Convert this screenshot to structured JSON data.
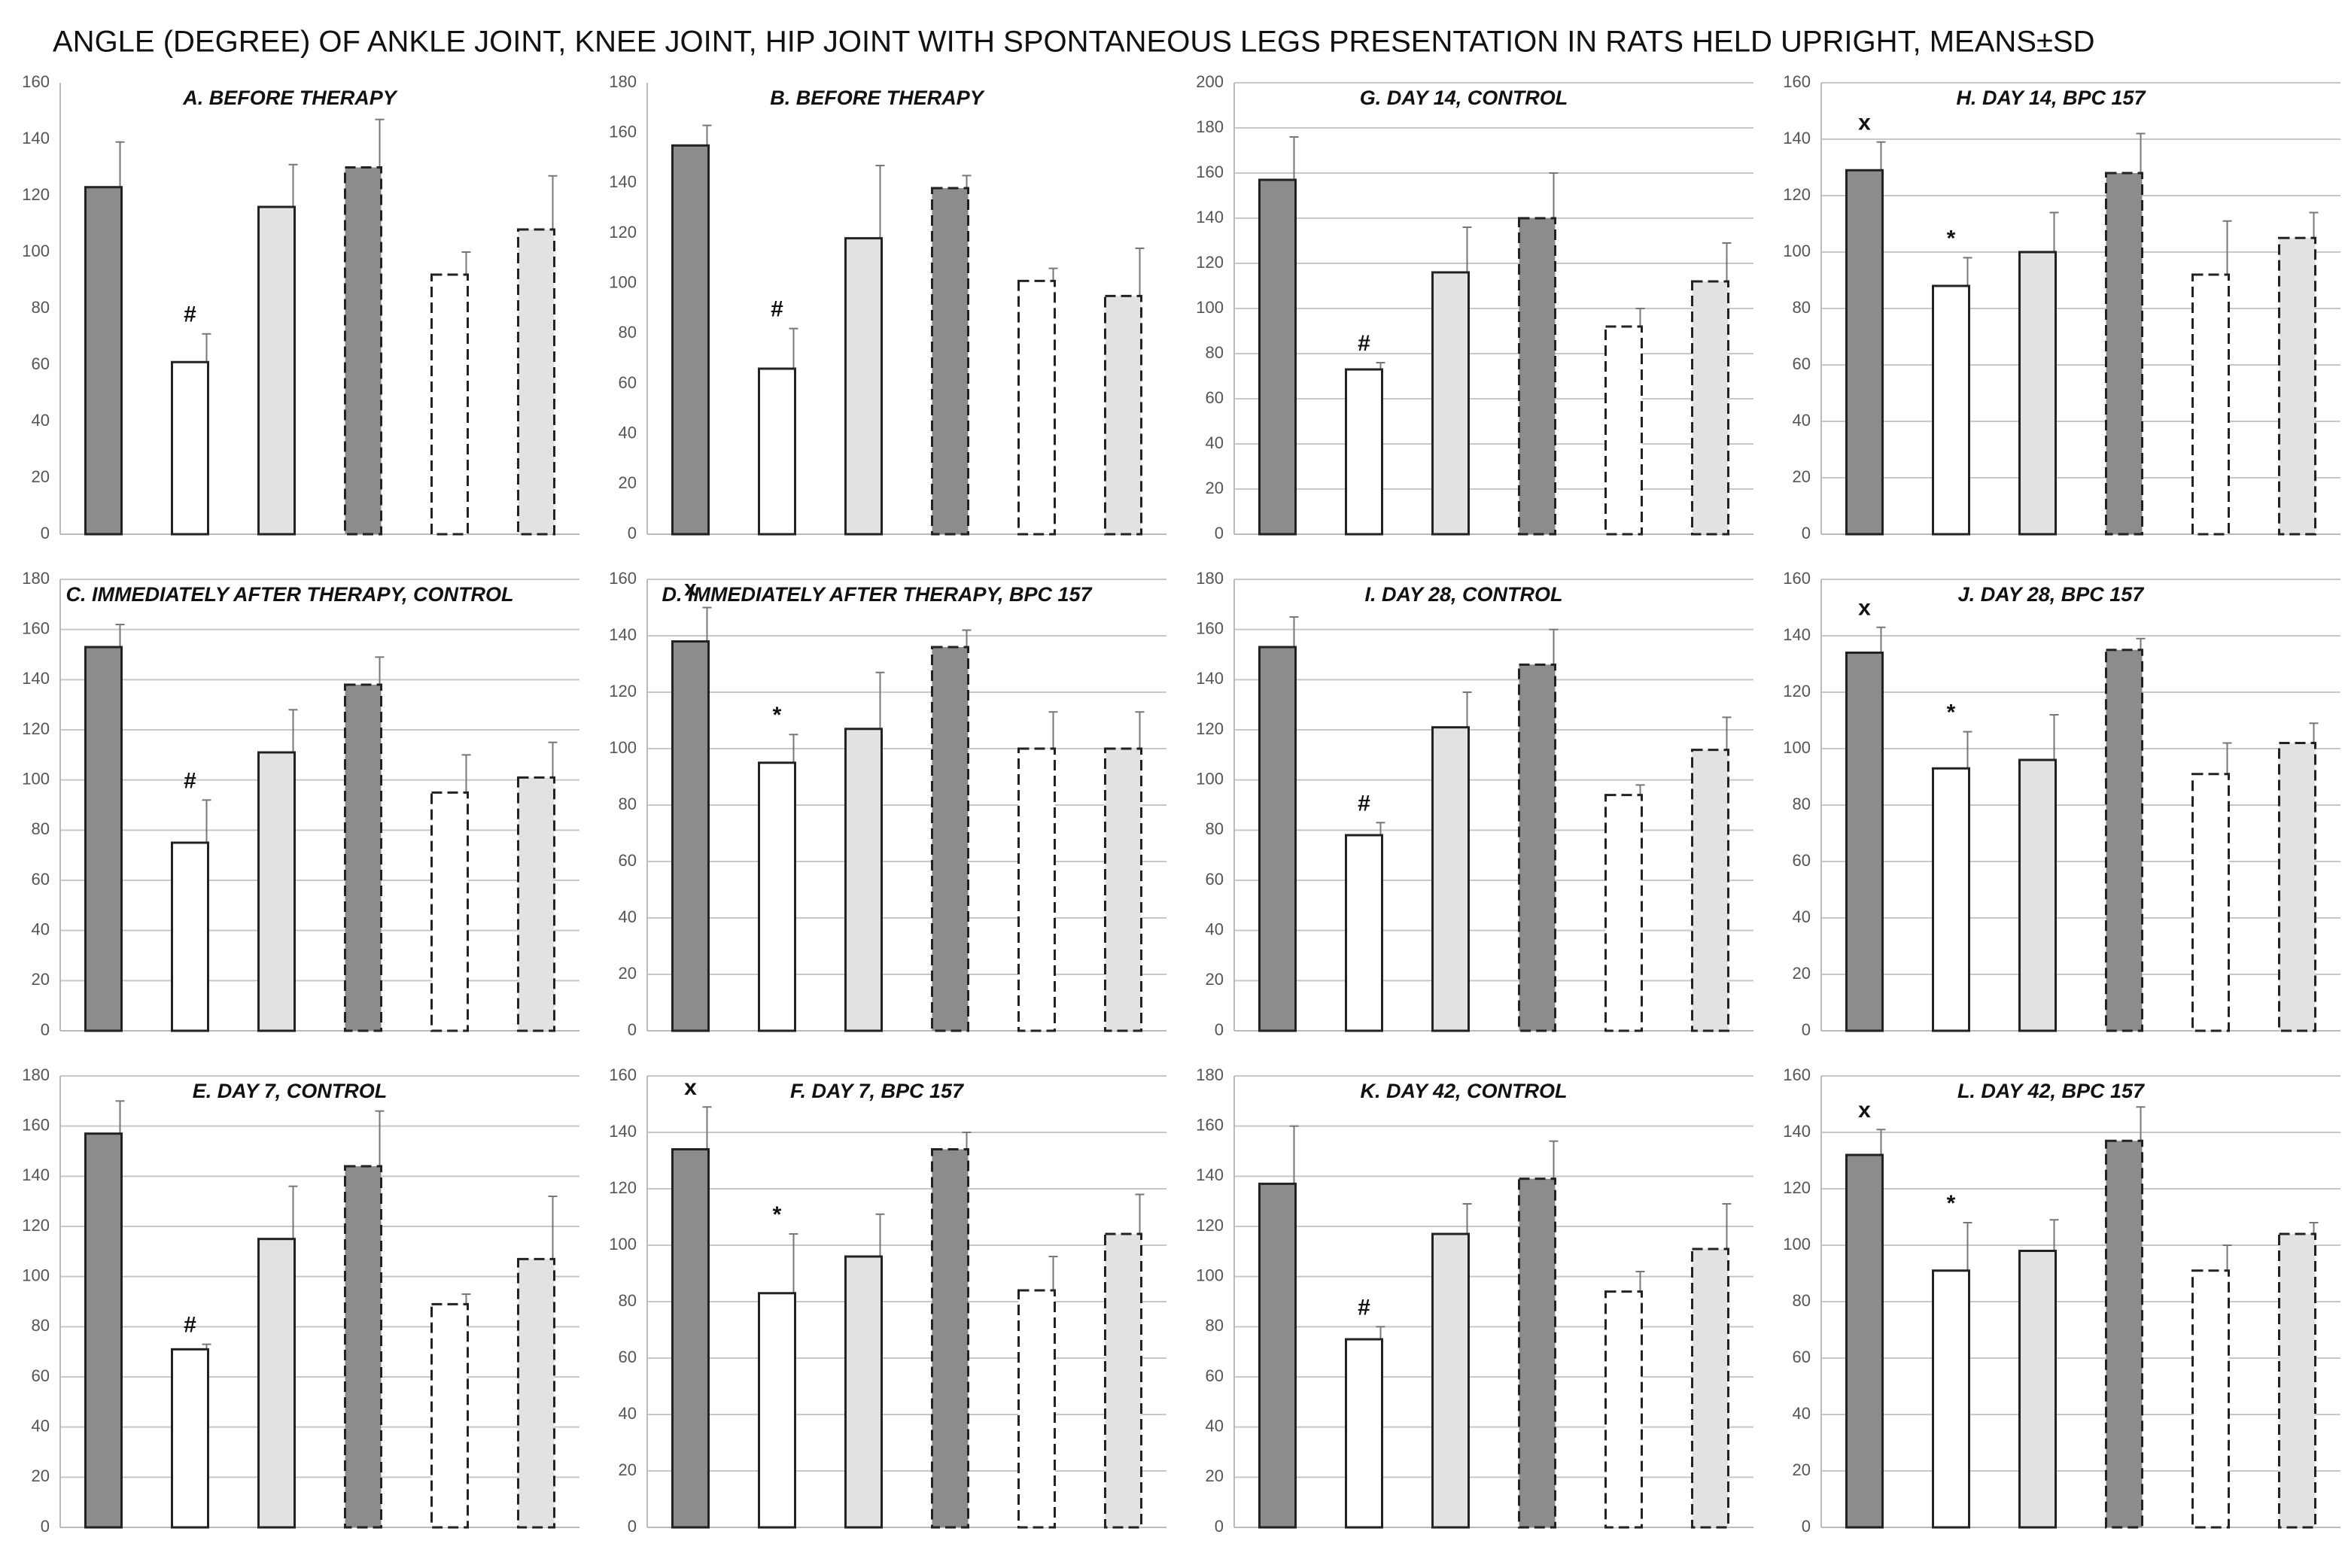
{
  "title": "ANGLE (DEGREE) OF ANKLE JOINT, KNEE JOINT, HIP JOINT WITH SPONTANEOUS LEGS PRESENTATION IN RATS HELD UPRIGHT, MEANS±SD",
  "chart_data": [
    {
      "type": "bar",
      "title": "A. BEFORE THERAPY",
      "values": [
        123,
        61,
        116,
        130,
        92,
        108
      ],
      "errors": [
        16,
        10,
        15,
        17,
        8,
        19
      ],
      "markers": [
        null,
        "#",
        null,
        null,
        null,
        null
      ],
      "ylim": [
        0,
        160
      ],
      "yticks": [
        0,
        20,
        40,
        60,
        80,
        100,
        120,
        140,
        160
      ],
      "grid": false,
      "colors": [
        "#8c8c8c",
        "#ffffff",
        "#e2e2e2",
        "#8c8c8c",
        "#ffffff",
        "#e2e2e2"
      ],
      "dashed": [
        false,
        false,
        false,
        true,
        true,
        true
      ]
    },
    {
      "type": "bar",
      "title": "B. BEFORE THERAPY",
      "values": [
        155,
        66,
        118,
        138,
        101,
        95
      ],
      "errors": [
        8,
        16,
        29,
        5,
        5,
        19
      ],
      "markers": [
        null,
        "#",
        null,
        null,
        null,
        null
      ],
      "ylim": [
        0,
        180
      ],
      "yticks": [
        0,
        20,
        40,
        60,
        80,
        100,
        120,
        140,
        160,
        180
      ],
      "grid": false,
      "colors": [
        "#8c8c8c",
        "#ffffff",
        "#e2e2e2",
        "#8c8c8c",
        "#ffffff",
        "#e2e2e2"
      ],
      "dashed": [
        false,
        false,
        false,
        true,
        true,
        true
      ]
    },
    {
      "type": "bar",
      "title": "G. DAY 14,  CONTROL",
      "values": [
        157,
        73,
        116,
        140,
        92,
        112
      ],
      "errors": [
        19,
        3,
        20,
        20,
        8,
        17
      ],
      "markers": [
        null,
        "#",
        null,
        null,
        null,
        null
      ],
      "ylim": [
        0,
        200
      ],
      "yticks": [
        0,
        20,
        40,
        60,
        80,
        100,
        120,
        140,
        160,
        180,
        200
      ],
      "grid": true,
      "colors": [
        "#8c8c8c",
        "#ffffff",
        "#e2e2e2",
        "#8c8c8c",
        "#ffffff",
        "#e2e2e2"
      ],
      "dashed": [
        false,
        false,
        false,
        true,
        true,
        true
      ]
    },
    {
      "type": "bar",
      "title": "H. DAY 14,  BPC 157",
      "values": [
        129,
        88,
        100,
        128,
        92,
        105
      ],
      "errors": [
        10,
        10,
        14,
        14,
        19,
        9
      ],
      "markers": [
        "x",
        "*",
        null,
        null,
        null,
        null
      ],
      "ylim": [
        0,
        160
      ],
      "yticks": [
        0,
        20,
        40,
        60,
        80,
        100,
        120,
        140,
        160
      ],
      "grid": true,
      "colors": [
        "#8c8c8c",
        "#ffffff",
        "#e2e2e2",
        "#8c8c8c",
        "#ffffff",
        "#e2e2e2"
      ],
      "dashed": [
        false,
        false,
        false,
        true,
        true,
        true
      ]
    },
    {
      "type": "bar",
      "title": "C. IMMEDIATELY AFTER THERAPY,  CONTROL",
      "values": [
        153,
        75,
        111,
        138,
        95,
        101
      ],
      "errors": [
        9,
        17,
        17,
        11,
        15,
        14
      ],
      "markers": [
        null,
        "#",
        null,
        null,
        null,
        null
      ],
      "ylim": [
        0,
        180
      ],
      "yticks": [
        0,
        20,
        40,
        60,
        80,
        100,
        120,
        140,
        160,
        180
      ],
      "grid": true,
      "colors": [
        "#8c8c8c",
        "#ffffff",
        "#e2e2e2",
        "#8c8c8c",
        "#ffffff",
        "#e2e2e2"
      ],
      "dashed": [
        false,
        false,
        false,
        true,
        true,
        true
      ]
    },
    {
      "type": "bar",
      "title": "D. IMMEDIATELY AFTER THERAPY, BPC 157",
      "values": [
        138,
        95,
        107,
        136,
        100,
        100
      ],
      "errors": [
        12,
        10,
        20,
        6,
        13,
        13
      ],
      "markers": [
        "x",
        "*",
        null,
        null,
        null,
        null
      ],
      "ylim": [
        0,
        160
      ],
      "yticks": [
        0,
        20,
        40,
        60,
        80,
        100,
        120,
        140,
        160
      ],
      "grid": true,
      "colors": [
        "#8c8c8c",
        "#ffffff",
        "#e2e2e2",
        "#8c8c8c",
        "#ffffff",
        "#e2e2e2"
      ],
      "dashed": [
        false,
        false,
        false,
        true,
        true,
        true
      ]
    },
    {
      "type": "bar",
      "title": "I. DAY 28,  CONTROL",
      "values": [
        153,
        78,
        121,
        146,
        94,
        112
      ],
      "errors": [
        12,
        5,
        14,
        14,
        4,
        13
      ],
      "markers": [
        null,
        "#",
        null,
        null,
        null,
        null
      ],
      "ylim": [
        0,
        180
      ],
      "yticks": [
        0,
        20,
        40,
        60,
        80,
        100,
        120,
        140,
        160,
        180
      ],
      "grid": true,
      "colors": [
        "#8c8c8c",
        "#ffffff",
        "#e2e2e2",
        "#8c8c8c",
        "#ffffff",
        "#e2e2e2"
      ],
      "dashed": [
        false,
        false,
        false,
        true,
        true,
        true
      ]
    },
    {
      "type": "bar",
      "title": "J. DAY 28,  BPC 157",
      "values": [
        134,
        93,
        96,
        135,
        91,
        102
      ],
      "errors": [
        9,
        13,
        16,
        4,
        11,
        7
      ],
      "markers": [
        "x",
        "*",
        null,
        null,
        null,
        null
      ],
      "ylim": [
        0,
        160
      ],
      "yticks": [
        0,
        20,
        40,
        60,
        80,
        100,
        120,
        140,
        160
      ],
      "grid": true,
      "colors": [
        "#8c8c8c",
        "#ffffff",
        "#e2e2e2",
        "#8c8c8c",
        "#ffffff",
        "#e2e2e2"
      ],
      "dashed": [
        false,
        false,
        false,
        true,
        true,
        true
      ]
    },
    {
      "type": "bar",
      "title": "E. DAY 7,  CONTROL",
      "values": [
        157,
        71,
        115,
        144,
        89,
        107
      ],
      "errors": [
        13,
        2,
        21,
        22,
        4,
        25
      ],
      "markers": [
        null,
        "#",
        null,
        null,
        null,
        null
      ],
      "ylim": [
        0,
        180
      ],
      "yticks": [
        0,
        20,
        40,
        60,
        80,
        100,
        120,
        140,
        160,
        180
      ],
      "grid": true,
      "colors": [
        "#8c8c8c",
        "#ffffff",
        "#e2e2e2",
        "#8c8c8c",
        "#ffffff",
        "#e2e2e2"
      ],
      "dashed": [
        false,
        false,
        false,
        true,
        true,
        true
      ]
    },
    {
      "type": "bar",
      "title": "F. DAY 7,  BPC 157",
      "values": [
        134,
        83,
        96,
        134,
        84,
        104
      ],
      "errors": [
        15,
        21,
        15,
        6,
        12,
        14
      ],
      "markers": [
        "x",
        "*",
        null,
        null,
        null,
        null
      ],
      "ylim": [
        0,
        160
      ],
      "yticks": [
        0,
        20,
        40,
        60,
        80,
        100,
        120,
        140,
        160
      ],
      "grid": true,
      "colors": [
        "#8c8c8c",
        "#ffffff",
        "#e2e2e2",
        "#8c8c8c",
        "#ffffff",
        "#e2e2e2"
      ],
      "dashed": [
        false,
        false,
        false,
        true,
        true,
        true
      ]
    },
    {
      "type": "bar",
      "title": "K. DAY 42,  CONTROL",
      "values": [
        137,
        75,
        117,
        139,
        94,
        111
      ],
      "errors": [
        23,
        5,
        12,
        15,
        8,
        18
      ],
      "markers": [
        null,
        "#",
        null,
        null,
        null,
        null
      ],
      "ylim": [
        0,
        180
      ],
      "yticks": [
        0,
        20,
        40,
        60,
        80,
        100,
        120,
        140,
        160,
        180
      ],
      "grid": true,
      "colors": [
        "#8c8c8c",
        "#ffffff",
        "#e2e2e2",
        "#8c8c8c",
        "#ffffff",
        "#e2e2e2"
      ],
      "dashed": [
        false,
        false,
        false,
        true,
        true,
        true
      ]
    },
    {
      "type": "bar",
      "title": "L. DAY 42,  BPC 157",
      "values": [
        132,
        91,
        98,
        137,
        91,
        104
      ],
      "errors": [
        9,
        17,
        11,
        12,
        9,
        4
      ],
      "markers": [
        "x",
        "*",
        null,
        null,
        null,
        null
      ],
      "ylim": [
        0,
        160
      ],
      "yticks": [
        0,
        20,
        40,
        60,
        80,
        100,
        120,
        140,
        160
      ],
      "grid": true,
      "colors": [
        "#8c8c8c",
        "#ffffff",
        "#e2e2e2",
        "#8c8c8c",
        "#ffffff",
        "#e2e2e2"
      ],
      "dashed": [
        false,
        false,
        false,
        true,
        true,
        true
      ]
    }
  ]
}
